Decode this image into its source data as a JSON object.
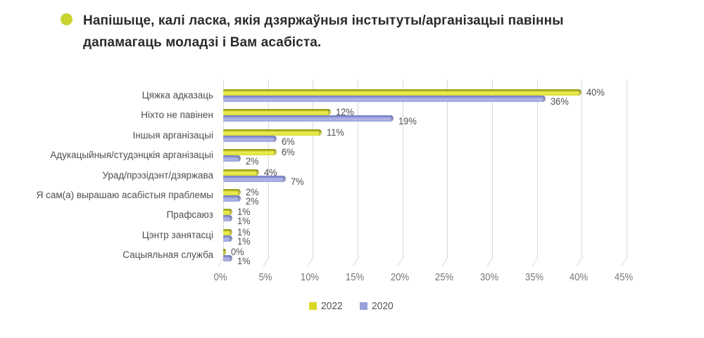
{
  "header": {
    "bullet_color": "#c9d32f",
    "title_line1": "Напішыце, калі ласка, якія дзяржаўныя інстытуты/арганізацыі павінны",
    "title_line2": "дапамагаць моладзі і Вам асабіста."
  },
  "chart_data": {
    "type": "bar",
    "orientation": "horizontal",
    "title": "Напішыце, калі ласка, якія дзяржаўныя інстытуты/арганізацыі павінны дапамагаць моладзі і Вам асабіста.",
    "categories": [
      "Цяжка адказаць",
      "Ніхто не павінен",
      "Іншыя арганізацыі",
      "Адукацыйныя/студэнцкія арганізацыі",
      "Урад/прэзідэнт/дзяржава",
      "Я сам(а) вырашаю асабістыя праблемы",
      "Прафсаюз",
      "Цэнтр занятасці",
      "Сацыяльная служба"
    ],
    "series": [
      {
        "name": "2022",
        "color": "#d6da25",
        "values": [
          40,
          12,
          11,
          6,
          4,
          2,
          1,
          1,
          0
        ],
        "labels": [
          "40%",
          "12%",
          "11%",
          "6%",
          "4%",
          "2%",
          "1%",
          "1%",
          "0%"
        ]
      },
      {
        "name": "2020",
        "color": "#99a2dd",
        "values": [
          36,
          19,
          6,
          2,
          7,
          2,
          1,
          1,
          1
        ],
        "labels": [
          "36%",
          "19%",
          "6%",
          "2%",
          "7%",
          "2%",
          "1%",
          "1%",
          "1%"
        ]
      }
    ],
    "value_suffix": "%",
    "xlim": [
      0,
      45
    ],
    "x_ticks": [
      "0%",
      "5%",
      "10%",
      "15%",
      "20%",
      "25%",
      "30%",
      "35%",
      "40%",
      "45%"
    ],
    "grid": true,
    "grid_color": "#d9d9d9",
    "legend_position": "bottom"
  },
  "legend": {
    "items": [
      {
        "label": "2022",
        "color": "#d6da25"
      },
      {
        "label": "2020",
        "color": "#99a2dd"
      }
    ]
  }
}
